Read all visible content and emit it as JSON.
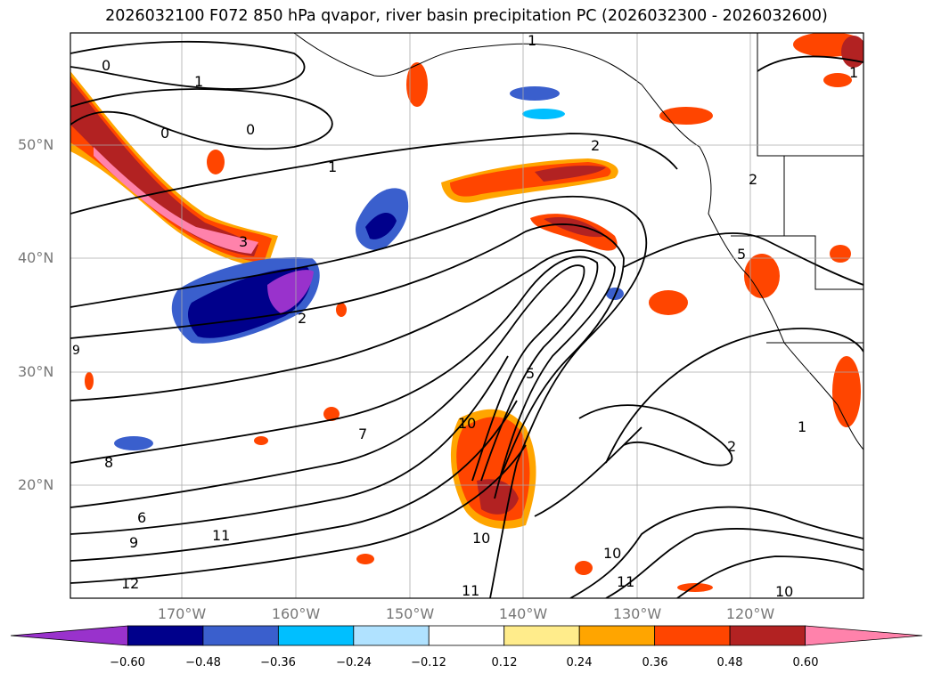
{
  "title": "2026032100 F072 850 hPa qvapor, river basin precipitation PC (2026032300 - 2026032600)",
  "map": {
    "lat_labels": [
      "50°N",
      "40°N",
      "30°N",
      "20°N"
    ],
    "lon_labels": [
      "170°W",
      "160°W",
      "150°W",
      "140°W",
      "130°W",
      "120°W"
    ],
    "contour_labels": [
      "0",
      "1",
      "0",
      "0",
      "1",
      "2",
      "3",
      "2",
      "1",
      "2",
      "10",
      "8",
      "7",
      "6",
      "9",
      "11",
      "12",
      "11",
      "10",
      "10",
      "11",
      "10",
      "2",
      "1",
      "5",
      "5",
      "1",
      "9"
    ]
  },
  "colorbar": {
    "colors": [
      "#9932cc",
      "#00008b",
      "#3a5fcd",
      "#00bfff",
      "#b0e2ff",
      "#ffffff",
      "#ffec8b",
      "#ffa500",
      "#ff4500",
      "#b22222",
      "#ff82ab"
    ],
    "tick_labels": [
      "−0.60",
      "−0.48",
      "−0.36",
      "−0.24",
      "−0.12",
      "0.12",
      "0.24",
      "0.36",
      "0.48",
      "0.60"
    ]
  }
}
